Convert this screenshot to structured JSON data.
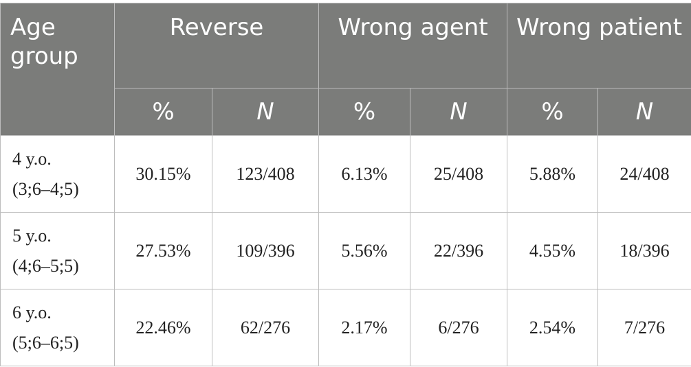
{
  "table": {
    "header": {
      "age_group": "Age group",
      "groups": [
        "Reverse",
        "Wrong agent",
        "Wrong patient"
      ],
      "sub_columns": [
        "%",
        "N"
      ]
    },
    "rows": [
      {
        "age": "4 y.o.",
        "range": "(3;6–4;5)",
        "values": [
          "30.15%",
          "123/408",
          "6.13%",
          "25/408",
          "5.88%",
          "24/408"
        ]
      },
      {
        "age": "5 y.o.",
        "range": "(4;6–5;5)",
        "values": [
          "27.53%",
          "109/396",
          "5.56%",
          "22/396",
          "4.55%",
          "18/396"
        ]
      },
      {
        "age": "6 y.o.",
        "range": "(5;6–6;5)",
        "values": [
          "22.46%",
          "62/276",
          "2.17%",
          "6/276",
          "2.54%",
          "7/276"
        ]
      }
    ]
  }
}
